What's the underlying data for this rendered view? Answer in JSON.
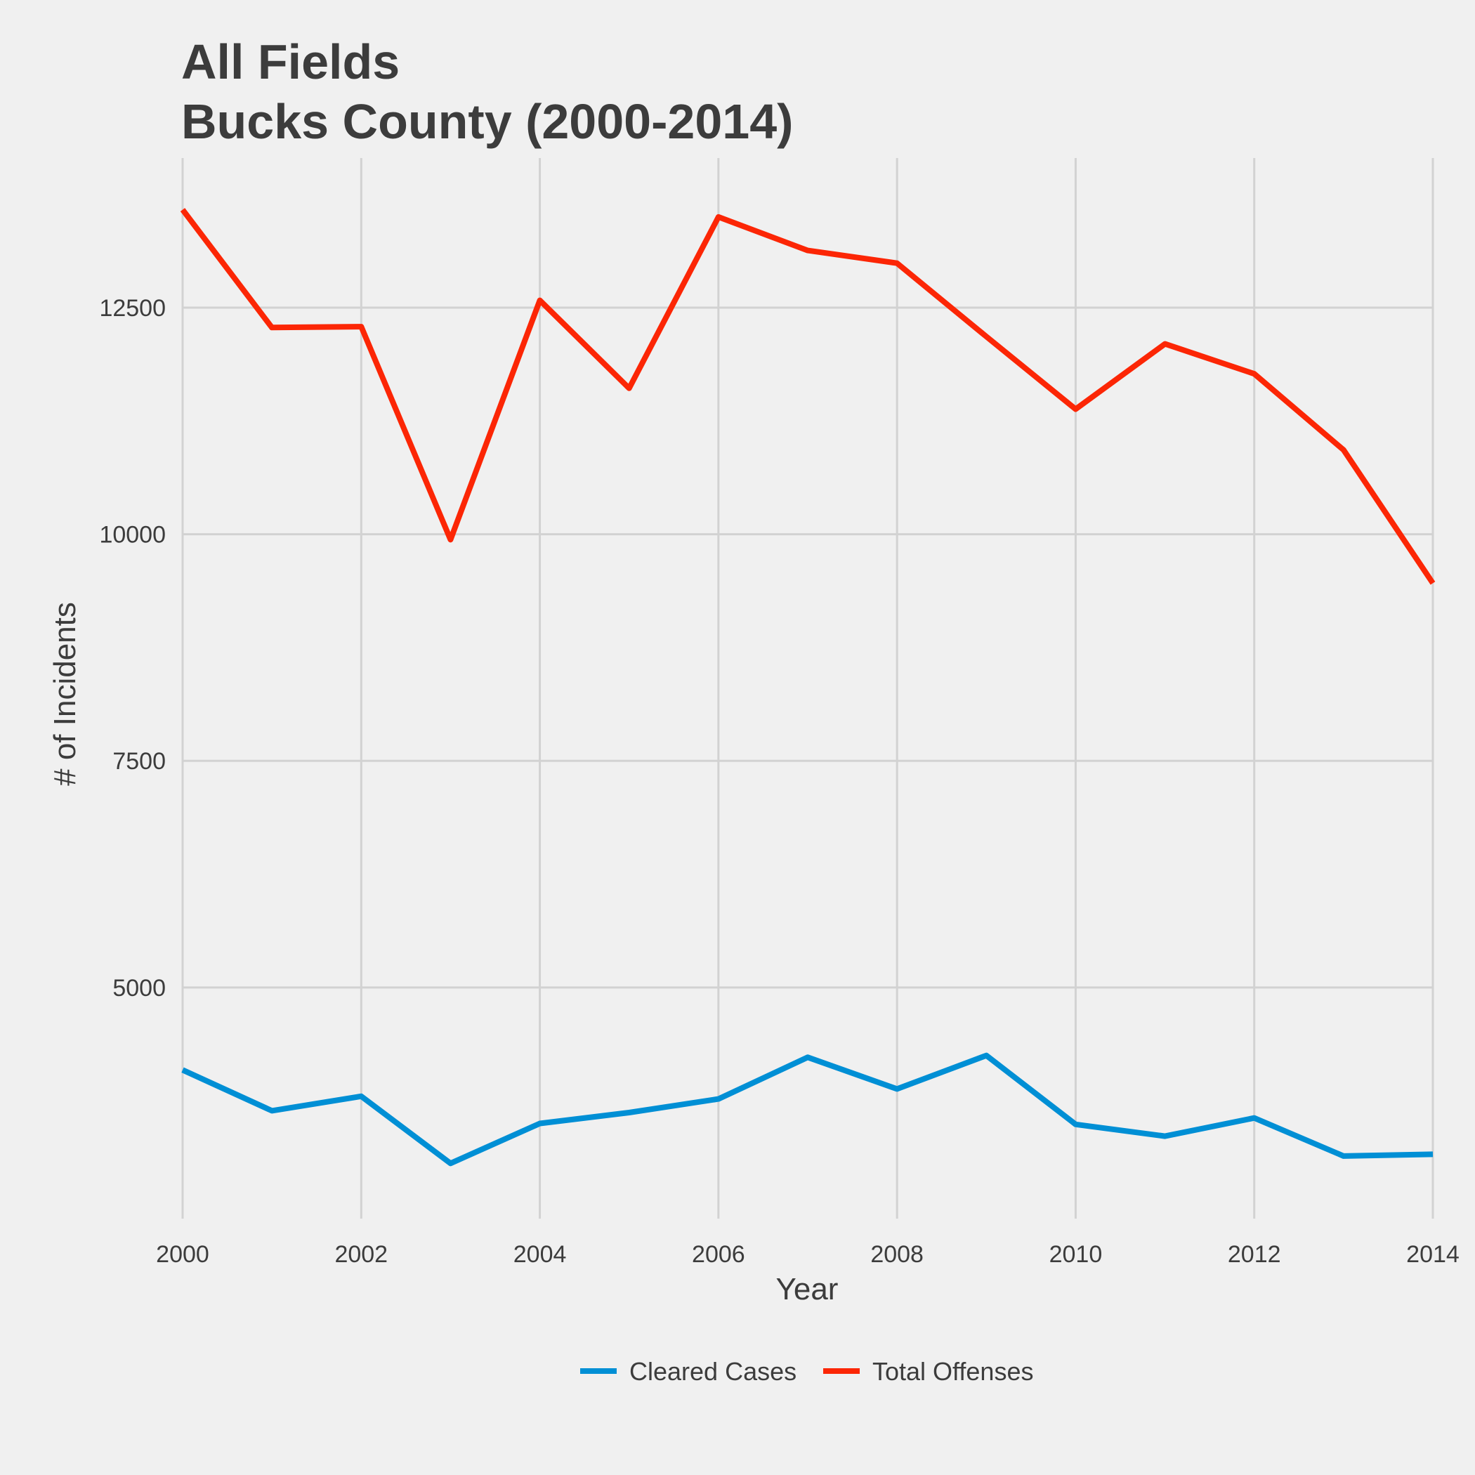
{
  "chart_data": {
    "type": "line",
    "title_line1": "All Fields",
    "title_line2": "Bucks County (2000-2014)",
    "xlabel": "Year",
    "ylabel": "# of Incidents",
    "x": [
      2000,
      2001,
      2002,
      2003,
      2004,
      2005,
      2006,
      2007,
      2008,
      2009,
      2010,
      2011,
      2012,
      2013,
      2014
    ],
    "x_ticks": [
      2000,
      2002,
      2004,
      2006,
      2008,
      2010,
      2012,
      2014
    ],
    "y_ticks": [
      5000,
      7500,
      10000,
      12500
    ],
    "xlim": [
      2000,
      2014
    ],
    "ylim": [
      2450,
      14150
    ],
    "grid": true,
    "legend_position": "bottom",
    "series": [
      {
        "name": "Cleared Cases",
        "color": "#008fd5",
        "values": [
          4090,
          3640,
          3800,
          3060,
          3500,
          3620,
          3770,
          4230,
          3880,
          4250,
          3490,
          3360,
          3560,
          3140,
          3160
        ]
      },
      {
        "name": "Total Offenses",
        "color": "#fc2605",
        "values": [
          13580,
          12280,
          12290,
          9940,
          12580,
          11610,
          13500,
          13130,
          12990,
          12180,
          11380,
          12100,
          11770,
          10930,
          9460
        ]
      }
    ]
  }
}
